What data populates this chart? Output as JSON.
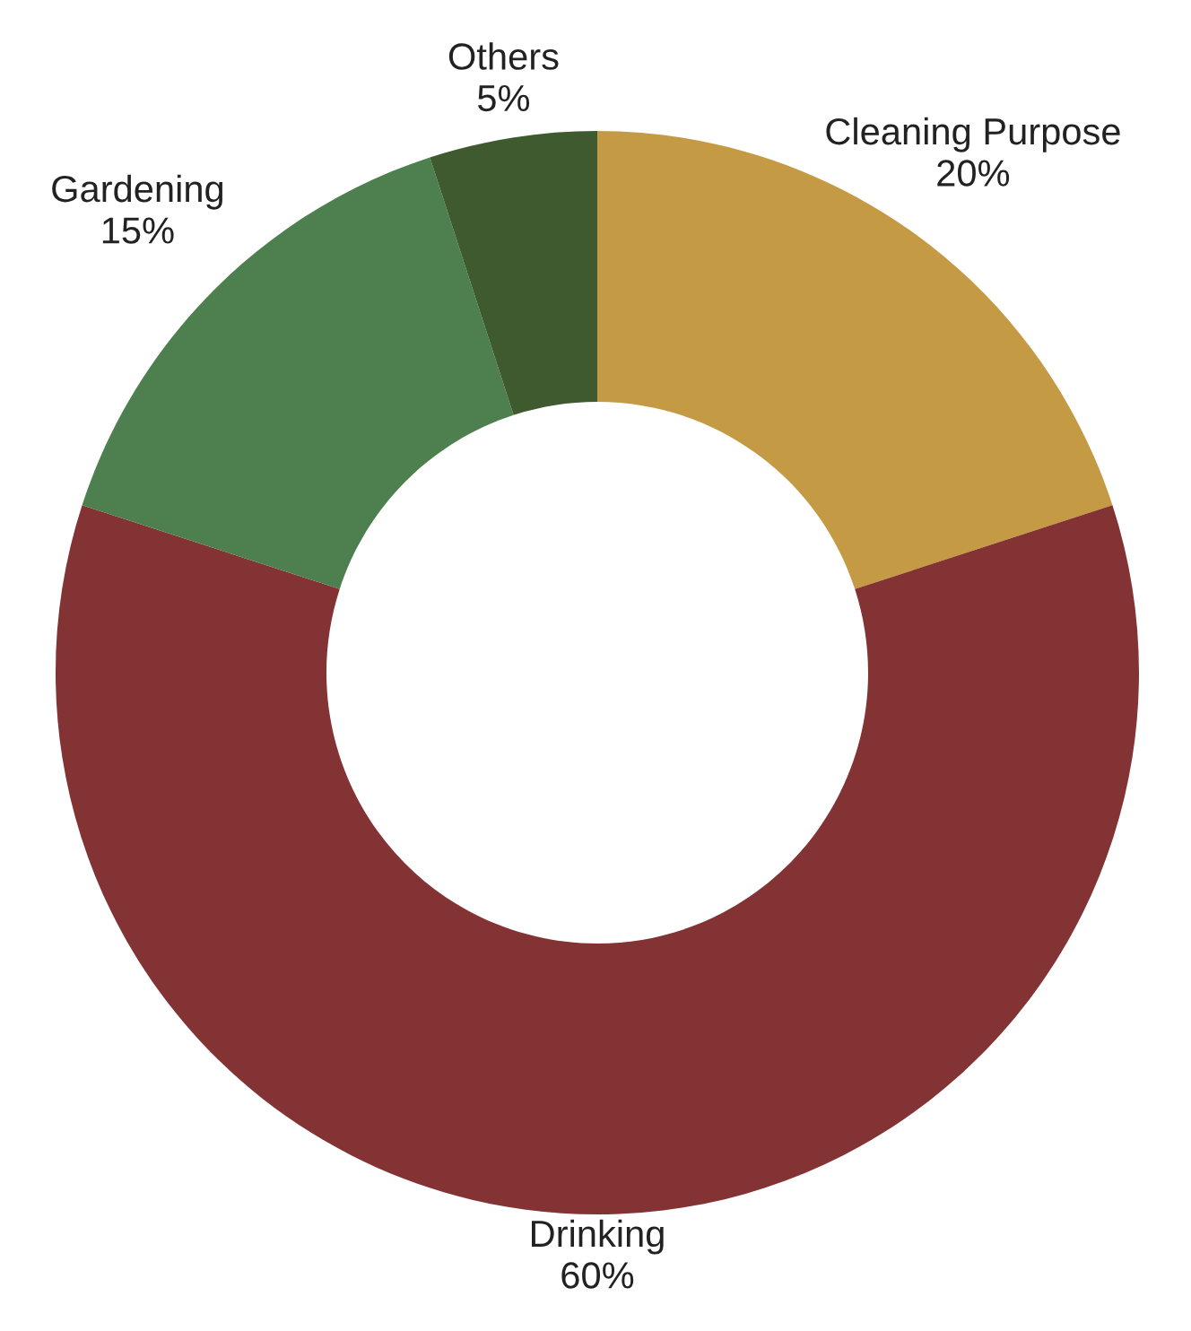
{
  "chart_data": {
    "type": "donut",
    "categories": [
      "Cleaning Purpose",
      "Drinking",
      "Gardening",
      "Others"
    ],
    "values": [
      20,
      60,
      15,
      5
    ],
    "value_labels": [
      "20%",
      "60%",
      "15%",
      "5%"
    ],
    "colors": [
      "#c49a45",
      "#843334",
      "#4e7f4e",
      "#3f5a2e"
    ]
  }
}
